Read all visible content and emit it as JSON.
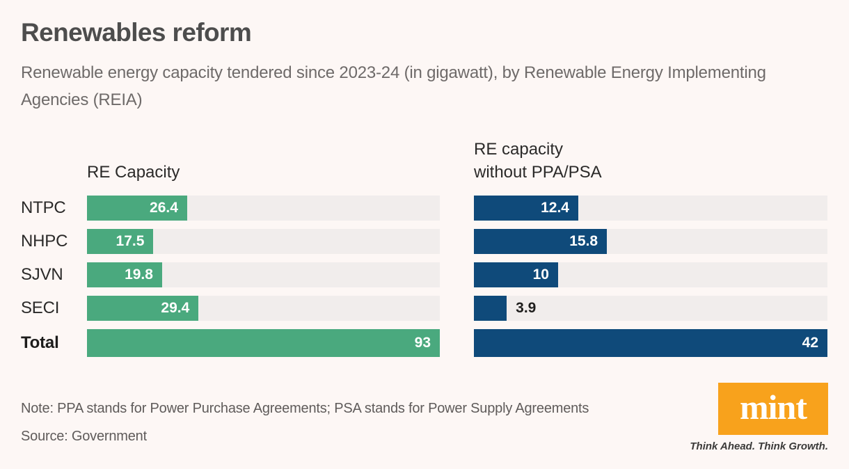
{
  "chart_data": {
    "type": "bar",
    "orientation": "horizontal",
    "title": "Renewables reform",
    "subtitle": "Renewable energy capacity tendered since 2023-24 (in gigawatt), by Renewable Energy Implementing Agencies (REIA)",
    "unit": "gigawatt (GW)",
    "categories": [
      "NTPC",
      "NHPC",
      "SJVN",
      "SECI",
      "Total"
    ],
    "total_category": "Total",
    "column_headers": {
      "left": "RE Capacity",
      "right": [
        "RE capacity",
        "without PPA/PSA"
      ]
    },
    "series": [
      {
        "name": "RE Capacity",
        "key": "re-capacity",
        "color": "#4aa97e",
        "xlim": [
          0,
          93
        ],
        "values": [
          26.4,
          17.5,
          19.8,
          29.4,
          93
        ]
      },
      {
        "name": "RE capacity without PPA/PSA",
        "key": "re-capacity-without-ppa-psa",
        "color": "#0f4a7a",
        "xlim": [
          0,
          42
        ],
        "values": [
          12.4,
          15.8,
          10,
          3.9,
          42
        ]
      }
    ],
    "legend": "none",
    "grid": false,
    "note": "Note: PPA stands for Power Purchase Agreements; PSA stands for Power Supply Agreements",
    "source": "Source: Government"
  },
  "logo": {
    "text": "mint",
    "tagline": "Think Ahead. Think Growth."
  },
  "colors": {
    "background": "#fdf7f5",
    "track": "#f1edec",
    "green": "#4aa97e",
    "blue": "#0f4a7a",
    "title_text": "#4d4d4d",
    "subtitle_text": "#6e6a69",
    "label_text": "#2b2a29",
    "value_text_light": "#ffffff",
    "value_text_dark": "#1f1e1d",
    "note_text": "#5f5b5a",
    "mint_orange": "#f8a21c",
    "tagline_text": "#3b3a39"
  }
}
